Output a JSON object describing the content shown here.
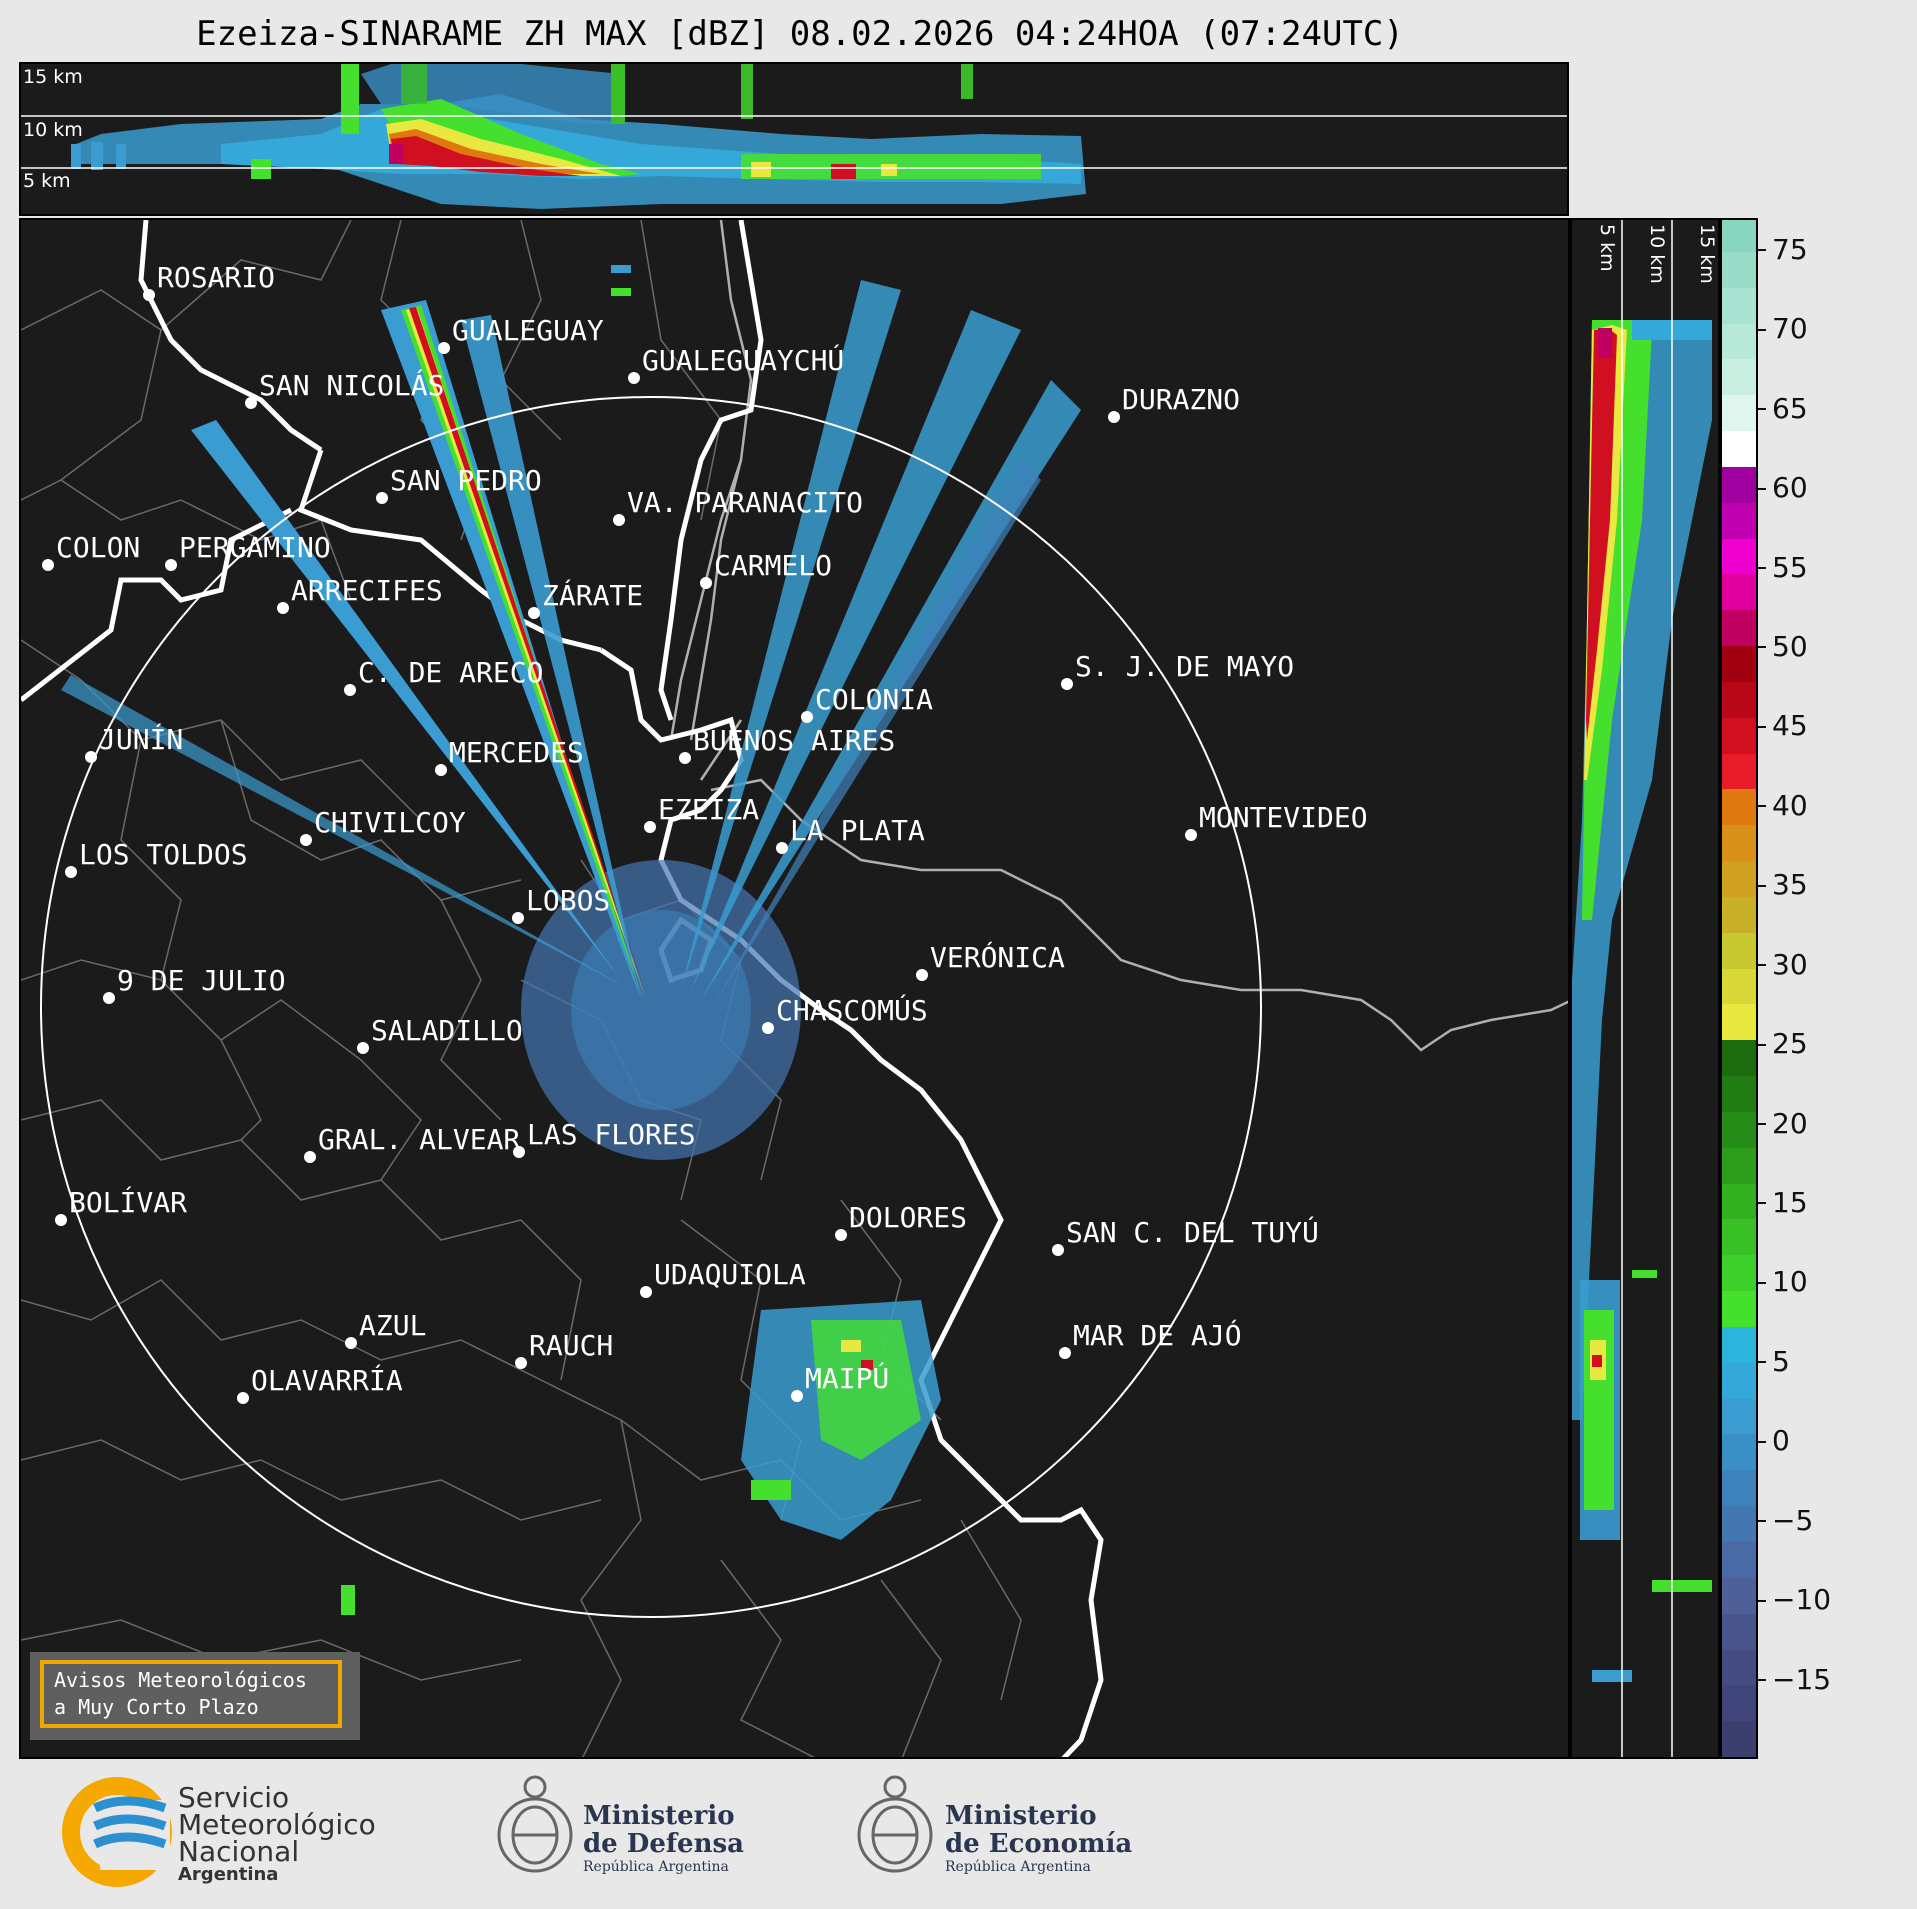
{
  "title": "Ezeiza-SINARAME ZH MAX [dBZ] 08.02.2026 04:24HOA (07:24UTC)",
  "radar": {
    "name": "EZEIZA",
    "range_ring_label": ""
  },
  "top_section": {
    "levels": [
      "15 km",
      "10 km",
      "5 km"
    ]
  },
  "right_section": {
    "levels": [
      "5 km",
      "10 km",
      "15 km"
    ]
  },
  "colorbar": {
    "ticks": [
      "75",
      "70",
      "65",
      "60",
      "55",
      "50",
      "45",
      "40",
      "35",
      "30",
      "25",
      "20",
      "15",
      "10",
      "5",
      "0",
      "−5",
      "−10",
      "−15"
    ],
    "tick_values": [
      75,
      70,
      65,
      60,
      55,
      50,
      45,
      40,
      35,
      30,
      25,
      20,
      15,
      10,
      5,
      0,
      -5,
      -10,
      -15
    ],
    "range": [
      -20,
      77
    ],
    "colors": [
      "#3a3f6e",
      "#40457a",
      "#454c82",
      "#4a548c",
      "#4f5f98",
      "#4a6aa6",
      "#4476b2",
      "#3e82bc",
      "#3a8fc6",
      "#3a9cd0",
      "#34a8d8",
      "#2db4dd",
      "#45e02e",
      "#3ed02a",
      "#38c024",
      "#32b020",
      "#2c9e1c",
      "#268c18",
      "#227c14",
      "#1e6c10",
      "#e8e840",
      "#d8d838",
      "#c8c830",
      "#c8b028",
      "#d0a020",
      "#d89018",
      "#e07810",
      "#e81c28",
      "#d01020",
      "#b80818",
      "#a00010",
      "#c00060",
      "#e000a0",
      "#f000d0",
      "#c000b0",
      "#a000a0",
      "#ffffff",
      "#dff5ee",
      "#c8eee0",
      "#b8e8d8",
      "#a8e2d0",
      "#98dcc8",
      "#88d6c0"
    ]
  },
  "cities": [
    {
      "name": "ROSARIO"
    },
    {
      "name": "GUALEGUAYCHÚ"
    },
    {
      "name": "GUALEGUAY"
    },
    {
      "name": "SAN NICOLÁS"
    },
    {
      "name": "DURAZNO"
    },
    {
      "name": "SAN PEDRO"
    },
    {
      "name": "VA. PARANACITO"
    },
    {
      "name": "COLON"
    },
    {
      "name": "PERGAMINO"
    },
    {
      "name": "CARMELO"
    },
    {
      "name": "ARRECIFES"
    },
    {
      "name": "ZÁRATE"
    },
    {
      "name": "S. J. DE MAYO"
    },
    {
      "name": "C. DE ARECO"
    },
    {
      "name": "COLONIA"
    },
    {
      "name": "JUNÍN"
    },
    {
      "name": "BUENOS AIRES"
    },
    {
      "name": "MERCEDES"
    },
    {
      "name": "EZEIZA"
    },
    {
      "name": "MONTEVIDEO"
    },
    {
      "name": "CHIVILCOY"
    },
    {
      "name": "LA PLATA"
    },
    {
      "name": "LOS TOLDOS"
    },
    {
      "name": "LOBOS"
    },
    {
      "name": "VERÓNICA"
    },
    {
      "name": "9 DE JULIO"
    },
    {
      "name": "CHASCOMÚS"
    },
    {
      "name": "SALADILLO"
    },
    {
      "name": "GRAL. ALVEAR"
    },
    {
      "name": "LAS FLORES"
    },
    {
      "name": "BOLÍVAR"
    },
    {
      "name": "DOLORES"
    },
    {
      "name": "SAN C. DEL TUYÚ"
    },
    {
      "name": "UDAQUIOLA"
    },
    {
      "name": "AZUL"
    },
    {
      "name": "RAUCH"
    },
    {
      "name": "MAR DE AJÓ"
    },
    {
      "name": "OLAVARRÍA"
    },
    {
      "name": "MAIPÚ"
    }
  ],
  "notice": {
    "line1": "Avisos Meteorológicos",
    "line2": "a Muy Corto Plazo"
  },
  "footer": {
    "smn": {
      "line1": "Servicio",
      "line2": "Meteorológico",
      "line3": "Nacional",
      "line4": "Argentina"
    },
    "defensa": {
      "line1": "Ministerio",
      "line2": "de Defensa",
      "line3": "República Argentina"
    },
    "economia": {
      "line1": "Ministerio",
      "line2": "de Economía",
      "line3": "República Argentina"
    }
  },
  "colors": {
    "background": "#1b1b1b",
    "notice_border": "#f0a800",
    "smn_blue": "#2b8fd0",
    "smn_orange": "#f5a800"
  }
}
